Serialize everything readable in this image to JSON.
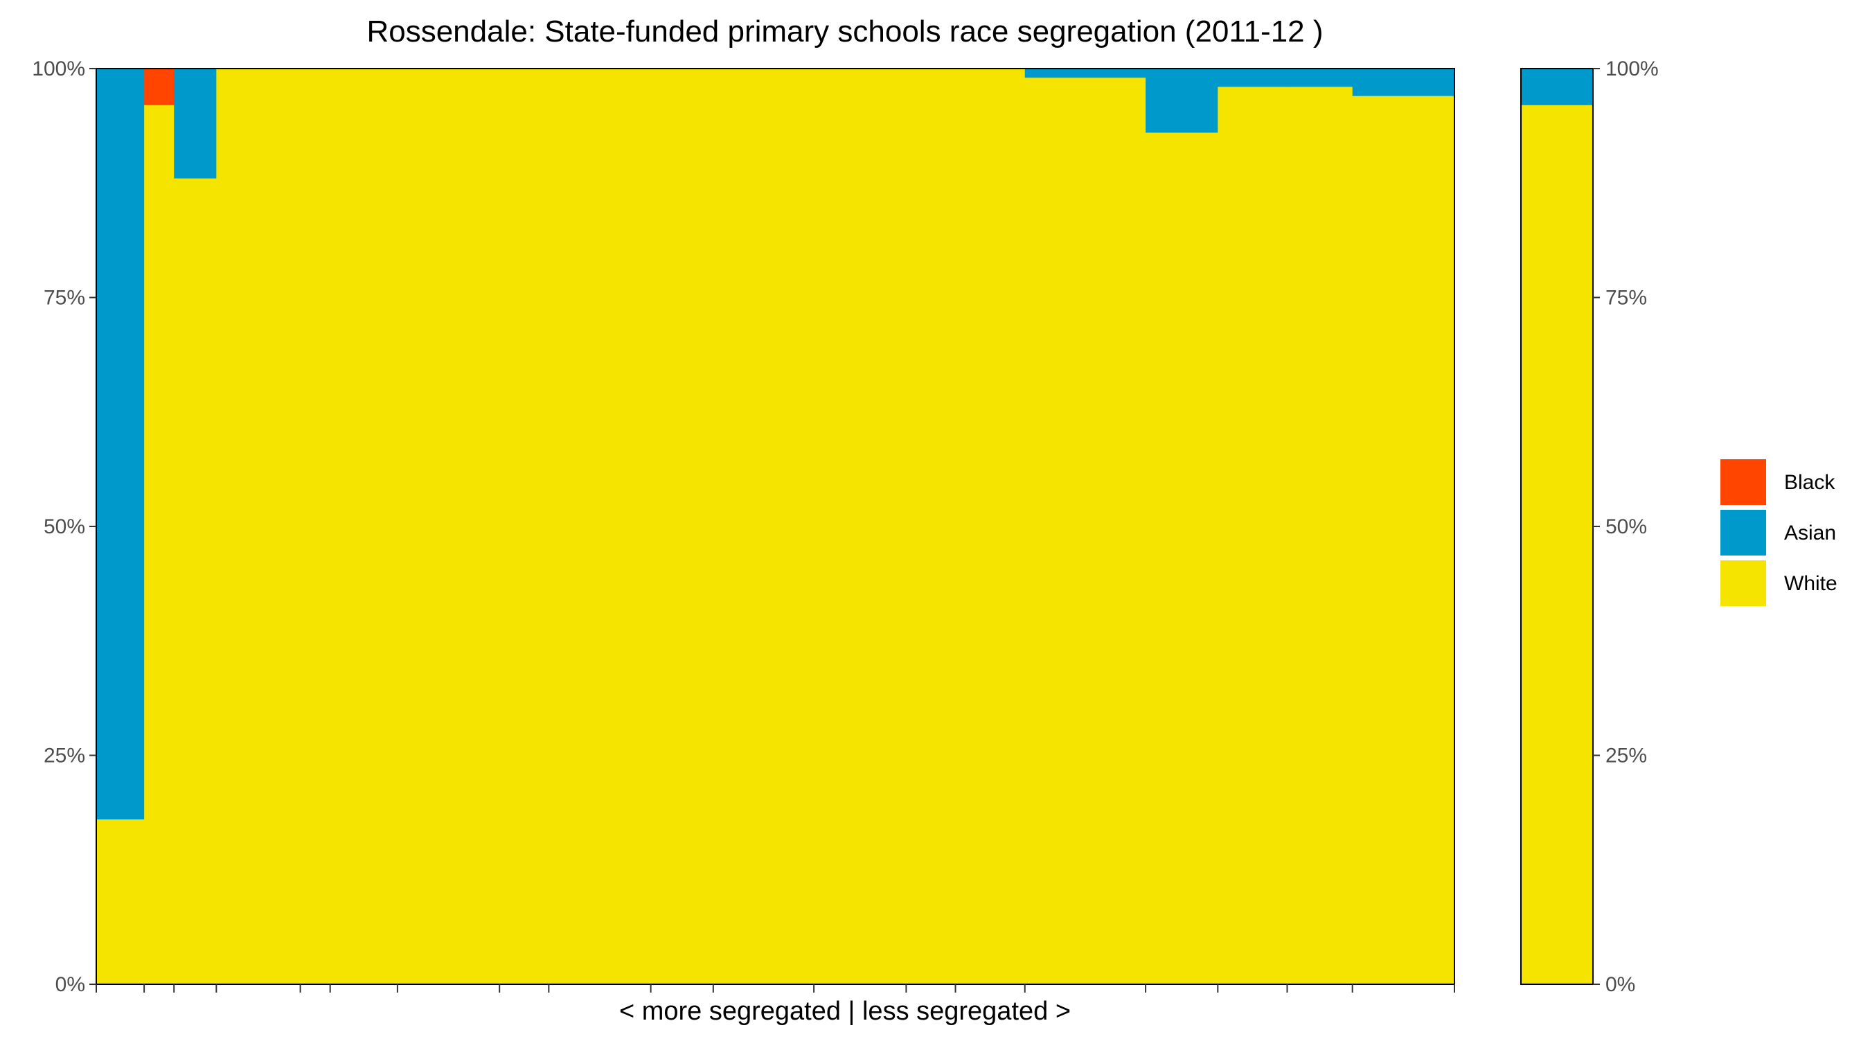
{
  "chart_data": {
    "type": "bar",
    "title": "Rossendale: State-funded primary schools race segregation (2011-12 )",
    "xlabel": "< more segregated | less segregated >",
    "ylabel": "",
    "ylim": [
      0,
      1
    ],
    "y_ticks": [
      "0%",
      "25%",
      "50%",
      "75%",
      "100%"
    ],
    "grid": false,
    "legend_position": "right",
    "colors": {
      "Black": "#FF4500",
      "Asian": "#0099CC",
      "White": "#F5E400"
    },
    "legend": [
      "Black",
      "Asian",
      "White"
    ],
    "schools": [
      {
        "weight": 0.69,
        "White": 0.18,
        "Asian": 0.82,
        "Black": 0.0
      },
      {
        "weight": 0.43,
        "White": 0.96,
        "Asian": 0.0,
        "Black": 0.04
      },
      {
        "weight": 0.61,
        "White": 0.88,
        "Asian": 0.12,
        "Black": 0.0
      },
      {
        "weight": 1.21,
        "White": 1.0,
        "Asian": 0.0,
        "Black": 0.0
      },
      {
        "weight": 0.43,
        "White": 1.0,
        "Asian": 0.0,
        "Black": 0.0
      },
      {
        "weight": 0.97,
        "White": 1.0,
        "Asian": 0.0,
        "Black": 0.0
      },
      {
        "weight": 1.47,
        "White": 1.0,
        "Asian": 0.0,
        "Black": 0.0
      },
      {
        "weight": 0.71,
        "White": 1.0,
        "Asian": 0.0,
        "Black": 0.0
      },
      {
        "weight": 1.47,
        "White": 1.0,
        "Asian": 0.0,
        "Black": 0.0
      },
      {
        "weight": 0.9,
        "White": 1.0,
        "Asian": 0.0,
        "Black": 0.0
      },
      {
        "weight": 1.45,
        "White": 1.0,
        "Asian": 0.0,
        "Black": 0.0
      },
      {
        "weight": 1.33,
        "White": 1.0,
        "Asian": 0.0,
        "Black": 0.0
      },
      {
        "weight": 0.71,
        "White": 1.0,
        "Asian": 0.0,
        "Black": 0.0
      },
      {
        "weight": 1.0,
        "White": 1.0,
        "Asian": 0.0,
        "Black": 0.0
      },
      {
        "weight": 1.74,
        "White": 0.99,
        "Asian": 0.01,
        "Black": 0.0
      },
      {
        "weight": 1.04,
        "White": 0.93,
        "Asian": 0.07,
        "Black": 0.0
      },
      {
        "weight": 1.0,
        "White": 0.98,
        "Asian": 0.02,
        "Black": 0.0
      },
      {
        "weight": 0.94,
        "White": 0.98,
        "Asian": 0.02,
        "Black": 0.0
      },
      {
        "weight": 1.47,
        "White": 0.97,
        "Asian": 0.03,
        "Black": 0.0
      }
    ],
    "total_bar": {
      "White": 0.96,
      "Asian": 0.04,
      "Black": 0.0
    }
  }
}
